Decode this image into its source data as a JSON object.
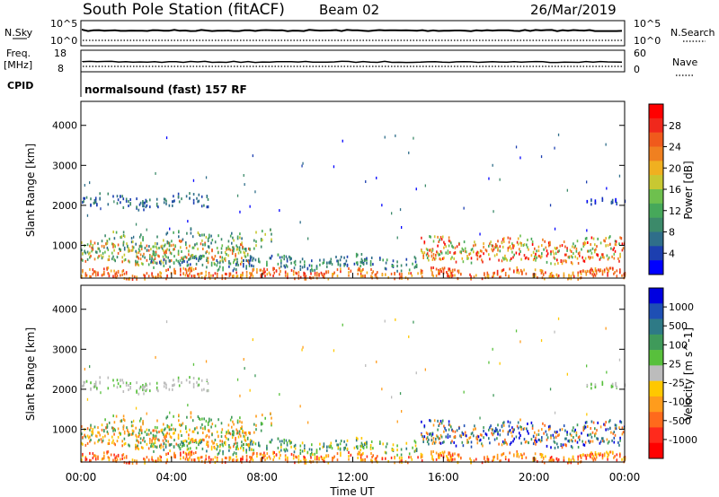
{
  "header": {
    "station": "South Pole Station (fitACF)",
    "beam": "Beam 02",
    "date": "26/Mar/2019"
  },
  "summary": {
    "nsky_label": "N.Sky",
    "nsky_ticks": [
      "10^5",
      "10^0"
    ],
    "nsearch_label": "N.Search",
    "nsearch_ticks": [
      "10^5",
      "10^0"
    ],
    "freq_label_1": "Freq.",
    "freq_label_2": "[MHz]",
    "freq_ticks": [
      "18",
      "8"
    ],
    "nave_label": "Nave",
    "nave_ticks": [
      "60",
      "0"
    ],
    "cpid_label": "CPID",
    "cpid_text": "normalsound (fast) 157 RF"
  },
  "colors": {
    "power": [
      "#0000ff",
      "#1c3fb0",
      "#2f6e8a",
      "#3c8a6a",
      "#46a85a",
      "#6ec04e",
      "#c8c832",
      "#f0b020",
      "#f08020",
      "#f05a1c",
      "#f0281c",
      "#ff0000"
    ],
    "velocity": [
      "#0000e0",
      "#1e4fb4",
      "#2e7a86",
      "#3f9a5a",
      "#58c03c",
      "#bcbcbc",
      "#ffc800",
      "#ff9c1c",
      "#ff6a1c",
      "#ff2a1c",
      "#ff0000"
    ]
  },
  "chart_data": [
    {
      "type": "heatmap",
      "name": "power",
      "ylabel": "Slant Range [km]",
      "ylim": [
        180,
        4600
      ],
      "yticks": [
        "1000",
        "2000",
        "3000",
        "4000"
      ],
      "xlim_hours": [
        0,
        24
      ],
      "colorbar": {
        "label": "Power [dB]",
        "ticks": [
          "4",
          "8",
          "12",
          "16",
          "20",
          "24",
          "28"
        ],
        "range": [
          0,
          32
        ]
      }
    },
    {
      "type": "heatmap",
      "name": "velocity",
      "ylabel": "Slant Range [km]",
      "ylim": [
        180,
        4600
      ],
      "yticks": [
        "1000",
        "2000",
        "3000",
        "4000"
      ],
      "xlabel": "Time UT",
      "xticks": [
        "00:00",
        "04:00",
        "08:00",
        "12:00",
        "16:00",
        "20:00",
        "00:00"
      ],
      "colorbar": {
        "label": "Velocity [m s^-1]",
        "ticks": [
          "1000",
          "500",
          "100",
          "25",
          "-25",
          "-100",
          "-500",
          "-1000"
        ]
      }
    }
  ]
}
